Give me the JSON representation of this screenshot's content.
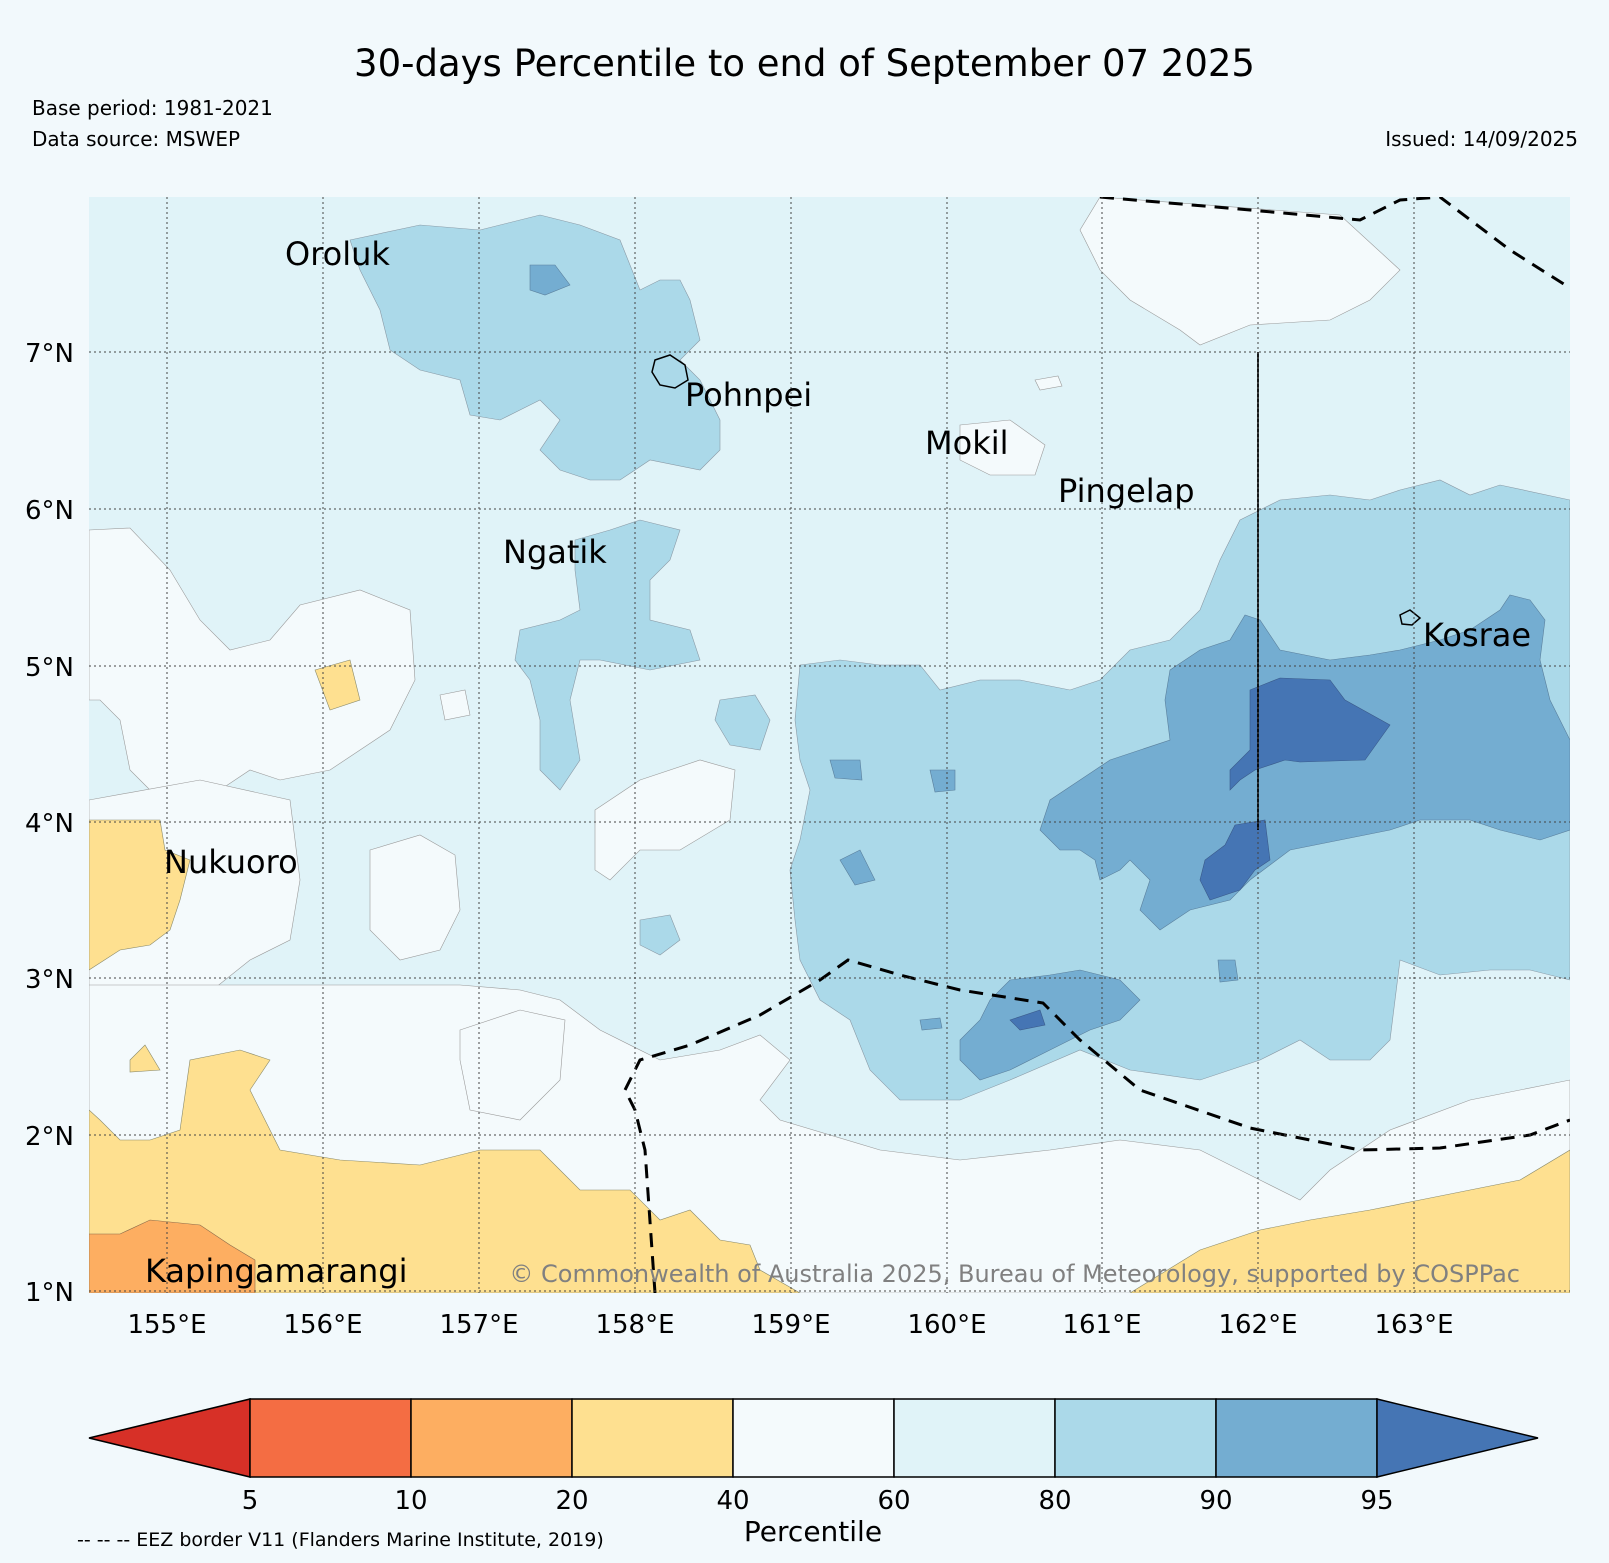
{
  "title": "30-days Percentile to end of September 07 2025",
  "base_period": "Base period: 1981-2021",
  "data_source": "Data source: MSWEP",
  "issued": "Issued: 14/09/2025",
  "copyright": "© Commonwealth of Australia 2025, Bureau of Meteorology, supported by COSPPac",
  "eez_note": "-- -- -- EEZ border V11 (Flanders Marine Institute, 2019)",
  "colorbar": {
    "label": "Percentile",
    "ticks": [
      "5",
      "10",
      "20",
      "40",
      "60",
      "80",
      "90",
      "95"
    ],
    "colors": {
      "below_5": "#d73027",
      "p5_10": "#f46d43",
      "p10_20": "#fdae61",
      "p20_40": "#fee090",
      "p40_60": "#f4fafc",
      "p60_80": "#e0f3f8",
      "p80_90": "#abd9e9",
      "p90_95": "#74add1",
      "above_95": "#4575b4"
    }
  },
  "axes": {
    "lon_ticks": [
      "155°E",
      "156°E",
      "157°E",
      "158°E",
      "159°E",
      "160°E",
      "161°E",
      "162°E",
      "163°E"
    ],
    "lat_ticks": [
      "7°N",
      "6°N",
      "5°N",
      "4°N",
      "3°N",
      "2°N",
      "1°N"
    ]
  },
  "islands": [
    "Oroluk",
    "Pohnpei",
    "Mokil",
    "Pingelap",
    "Ngatik",
    "Kosrae",
    "Nukuoro",
    "Kapingamarangi"
  ]
}
